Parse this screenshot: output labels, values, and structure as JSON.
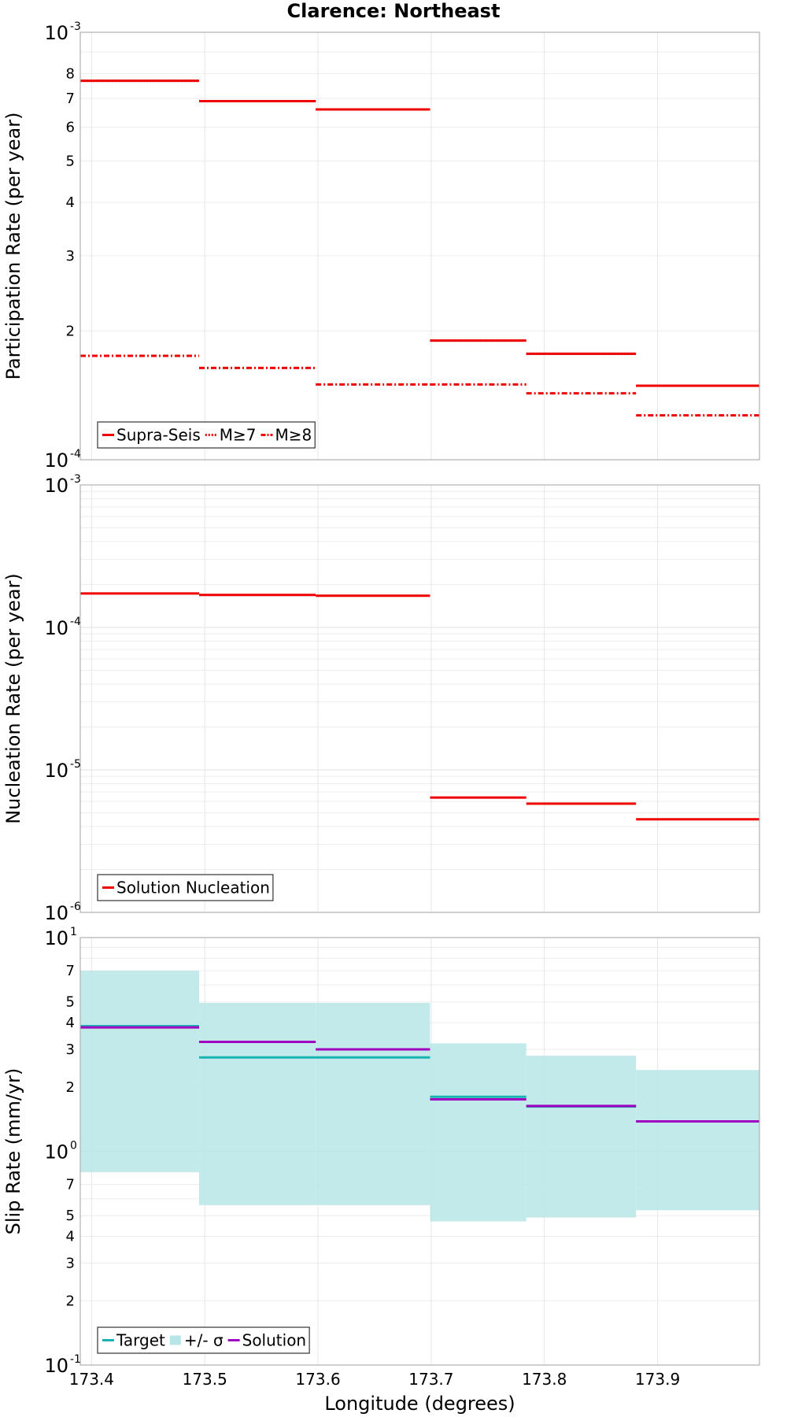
{
  "figure_title": "Clarence: Northeast",
  "colors": {
    "red": "#ee0000",
    "teal": "#19b2b2",
    "purple": "#a000c0",
    "band": "#b8e6e6"
  },
  "chart_data": [
    {
      "type": "line",
      "step": true,
      "title": "Clarence: Northeast",
      "xlabel": "",
      "ylabel": "Participation Rate (per year)",
      "yscale": "log",
      "xlim": [
        173.39,
        173.99
      ],
      "ylim": [
        0.0001,
        0.001
      ],
      "x_edges": [
        173.39,
        173.495,
        173.598,
        173.699,
        173.784,
        173.881,
        173.99
      ],
      "y_major_ticks": [
        {
          "value": 0.0001,
          "base": "10",
          "exp": "-4"
        },
        {
          "value": 0.001,
          "base": "10",
          "exp": "-3"
        }
      ],
      "y_minor_ticks": [
        {
          "value": 0.0002,
          "label": "2"
        },
        {
          "value": 0.0003,
          "label": "3"
        },
        {
          "value": 0.0004,
          "label": "4"
        },
        {
          "value": 0.0005,
          "label": "5"
        },
        {
          "value": 0.0006,
          "label": "6"
        },
        {
          "value": 0.0007,
          "label": "7"
        },
        {
          "value": 0.0008,
          "label": "8"
        }
      ],
      "legend": "bottom-left",
      "series": [
        {
          "name": "Supra-Seis",
          "style": "solid",
          "color": "#ee0000",
          "values": [
            0.00077,
            0.00069,
            0.00066,
            0.00019,
            0.000177,
            0.000149
          ]
        },
        {
          "name": "M≥7",
          "style": "dotted",
          "color": "#ee0000",
          "values": [
            0.00077,
            0.00069,
            0.00066,
            0.00019,
            0.000177,
            0.000149
          ]
        },
        {
          "name": "M≥8",
          "style": "dashdot",
          "color": "#ee0000",
          "values": [
            0.000175,
            0.000164,
            0.00015,
            0.00015,
            0.000143,
            0.000127
          ]
        }
      ]
    },
    {
      "type": "line",
      "step": true,
      "title": "",
      "xlabel": "",
      "ylabel": "Nucleation Rate (per year)",
      "yscale": "log",
      "xlim": [
        173.39,
        173.99
      ],
      "ylim": [
        1e-06,
        0.001
      ],
      "x_edges": [
        173.39,
        173.495,
        173.598,
        173.699,
        173.784,
        173.881,
        173.99
      ],
      "y_major_ticks": [
        {
          "value": 1e-06,
          "base": "10",
          "exp": "-6"
        },
        {
          "value": 1e-05,
          "base": "10",
          "exp": "-5"
        },
        {
          "value": 0.0001,
          "base": "10",
          "exp": "-4"
        },
        {
          "value": 0.001,
          "base": "10",
          "exp": "-3"
        }
      ],
      "y_minor_ticks": [],
      "legend": "bottom-left",
      "series": [
        {
          "name": "Solution Nucleation",
          "style": "solid",
          "color": "#ee0000",
          "values": [
            0.000173,
            0.000169,
            0.000167,
            6.4e-06,
            5.8e-06,
            4.5e-06
          ]
        }
      ]
    },
    {
      "type": "line",
      "step": true,
      "title": "",
      "xlabel": "Longitude (degrees)",
      "ylabel": "Slip Rate (mm/yr)",
      "yscale": "log",
      "xlim": [
        173.39,
        173.99
      ],
      "ylim": [
        0.1,
        10
      ],
      "x_edges": [
        173.39,
        173.495,
        173.598,
        173.699,
        173.784,
        173.881,
        173.99
      ],
      "x_ticks": [
        173.4,
        173.5,
        173.6,
        173.7,
        173.8,
        173.9
      ],
      "x_tick_labels": [
        "173.4",
        "173.5",
        "173.6",
        "173.7",
        "173.8",
        "173.9"
      ],
      "y_major_ticks": [
        {
          "value": 0.1,
          "base": "10",
          "exp": "-1"
        },
        {
          "value": 1,
          "base": "10",
          "exp": "0"
        },
        {
          "value": 10,
          "base": "10",
          "exp": "1"
        }
      ],
      "y_minor_ticks": [
        {
          "value": 0.2,
          "label": "2"
        },
        {
          "value": 0.3,
          "label": "3"
        },
        {
          "value": 0.4,
          "label": "4"
        },
        {
          "value": 0.5,
          "label": "5"
        },
        {
          "value": 0.7,
          "label": "7"
        },
        {
          "value": 2,
          "label": "2"
        },
        {
          "value": 3,
          "label": "3"
        },
        {
          "value": 4,
          "label": "4"
        },
        {
          "value": 5,
          "label": "5"
        },
        {
          "value": 7,
          "label": "7"
        }
      ],
      "legend": "bottom-left",
      "series": [
        {
          "name": "Target",
          "style": "solid",
          "color": "#19b2b2",
          "values": [
            3.85,
            2.75,
            2.75,
            1.8,
            1.62,
            1.38
          ]
        },
        {
          "name": "+/- σ",
          "style": "band",
          "color": "#b8e6e6",
          "lower": [
            0.8,
            0.56,
            0.56,
            0.47,
            0.49,
            0.53
          ],
          "upper": [
            7.0,
            4.95,
            4.95,
            3.2,
            2.8,
            2.4
          ]
        },
        {
          "name": "Solution",
          "style": "solid",
          "color": "#a000c0",
          "values": [
            3.8,
            3.25,
            3.0,
            1.75,
            1.63,
            1.38
          ]
        }
      ]
    }
  ]
}
